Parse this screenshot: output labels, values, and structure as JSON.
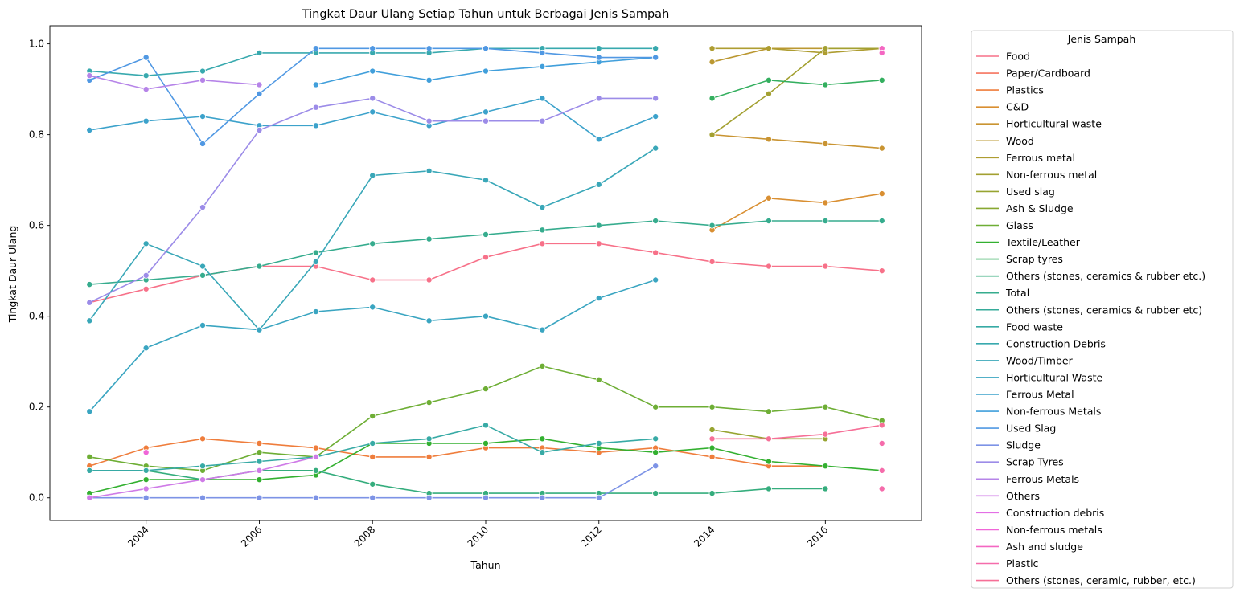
{
  "chart_data": {
    "type": "line",
    "title": "Tingkat Daur Ulang Setiap Tahun untuk Berbagai Jenis Sampah",
    "xlabel": "Tahun",
    "ylabel": "Tingkat Daur Ulang",
    "xlim": [
      2002.3,
      2017.7
    ],
    "ylim": [
      -0.05,
      1.04
    ],
    "xticks": [
      2004,
      2006,
      2008,
      2010,
      2012,
      2014,
      2016
    ],
    "yticks": [
      0.0,
      0.2,
      0.4,
      0.6,
      0.8,
      1.0
    ],
    "legend_title": "Jenis Sampah",
    "legend_position": "outside right",
    "grid": false,
    "series": [
      {
        "name": "Food",
        "color": "#f77189",
        "points": [
          [
            2003,
            0.43
          ],
          [
            2004,
            0.46
          ],
          [
            2005,
            0.49
          ],
          [
            2006,
            0.51
          ],
          [
            2007,
            0.51
          ],
          [
            2008,
            0.48
          ],
          [
            2009,
            0.48
          ],
          [
            2010,
            0.53
          ],
          [
            2011,
            0.56
          ],
          [
            2012,
            0.56
          ],
          [
            2013,
            0.54
          ],
          [
            2014,
            0.52
          ],
          [
            2015,
            0.51
          ],
          [
            2016,
            0.51
          ],
          [
            2017,
            0.5
          ]
        ]
      },
      {
        "name": "Paper/Cardboard",
        "color": "#f6745f",
        "points": []
      },
      {
        "name": "Plastics",
        "color": "#ef7d3c",
        "points": [
          [
            2003,
            0.07
          ],
          [
            2004,
            0.11
          ],
          [
            2005,
            0.13
          ],
          [
            2006,
            0.12
          ],
          [
            2007,
            0.11
          ],
          [
            2008,
            0.09
          ],
          [
            2009,
            0.09
          ],
          [
            2010,
            0.11
          ],
          [
            2011,
            0.11
          ],
          [
            2012,
            0.1
          ],
          [
            2013,
            0.11
          ],
          [
            2014,
            0.09
          ],
          [
            2015,
            0.07
          ],
          [
            2016,
            0.07
          ]
        ]
      },
      {
        "name": "C&D",
        "color": "#d98f32",
        "points": [
          [
            2014,
            0.59
          ],
          [
            2015,
            0.66
          ],
          [
            2016,
            0.65
          ],
          [
            2017,
            0.67
          ]
        ]
      },
      {
        "name": "Horticultural waste",
        "color": "#c99432",
        "points": [
          [
            2014,
            0.8
          ],
          [
            2015,
            0.79
          ],
          [
            2016,
            0.78
          ],
          [
            2017,
            0.77
          ]
        ]
      },
      {
        "name": "Wood",
        "color": "#bb9832",
        "points": [
          [
            2014,
            0.96
          ],
          [
            2015,
            0.99
          ],
          [
            2016,
            0.99
          ],
          [
            2017,
            0.99
          ]
        ]
      },
      {
        "name": "Ferrous metal",
        "color": "#ae9d31",
        "points": [
          [
            2014,
            0.99
          ],
          [
            2015,
            0.99
          ],
          [
            2016,
            0.98
          ],
          [
            2017,
            0.99
          ]
        ]
      },
      {
        "name": "Non-ferrous metal",
        "color": "#a3a031",
        "points": [
          [
            2014,
            0.8
          ],
          [
            2015,
            0.89
          ],
          [
            2016,
            0.99
          ],
          [
            2017,
            0.99
          ]
        ]
      },
      {
        "name": "Used slag",
        "color": "#97a431",
        "points": [
          [
            2014,
            0.15
          ],
          [
            2015,
            0.13
          ],
          [
            2016,
            0.13
          ]
        ]
      },
      {
        "name": "Ash & Sludge",
        "color": "#88a831",
        "points": []
      },
      {
        "name": "Glass",
        "color": "#6eae35",
        "points": [
          [
            2003,
            0.09
          ],
          [
            2004,
            0.07
          ],
          [
            2005,
            0.06
          ],
          [
            2006,
            0.1
          ],
          [
            2007,
            0.09
          ],
          [
            2008,
            0.18
          ],
          [
            2009,
            0.21
          ],
          [
            2010,
            0.24
          ],
          [
            2011,
            0.29
          ],
          [
            2012,
            0.26
          ],
          [
            2013,
            0.2
          ],
          [
            2014,
            0.2
          ],
          [
            2015,
            0.19
          ],
          [
            2016,
            0.2
          ],
          [
            2017,
            0.17
          ]
        ]
      },
      {
        "name": "Textile/Leather",
        "color": "#33b030",
        "points": [
          [
            2003,
            0.01
          ],
          [
            2004,
            0.04
          ],
          [
            2005,
            0.04
          ],
          [
            2006,
            0.04
          ],
          [
            2007,
            0.05
          ],
          [
            2008,
            0.12
          ],
          [
            2009,
            0.12
          ],
          [
            2010,
            0.12
          ],
          [
            2011,
            0.13
          ],
          [
            2012,
            0.11
          ],
          [
            2013,
            0.1
          ],
          [
            2014,
            0.11
          ],
          [
            2015,
            0.08
          ],
          [
            2016,
            0.07
          ],
          [
            2017,
            0.06
          ]
        ]
      },
      {
        "name": "Scrap tyres",
        "color": "#34af5f",
        "points": [
          [
            2014,
            0.88
          ],
          [
            2015,
            0.92
          ],
          [
            2016,
            0.91
          ],
          [
            2017,
            0.92
          ]
        ]
      },
      {
        "name": "Others (stones, ceramics & rubber etc.)",
        "color": "#35ad7d",
        "points": [
          [
            2003,
            0.06
          ],
          [
            2004,
            0.06
          ],
          [
            2005,
            0.04
          ],
          [
            2006,
            0.06
          ],
          [
            2007,
            0.06
          ],
          [
            2008,
            0.03
          ],
          [
            2009,
            0.01
          ],
          [
            2010,
            0.01
          ],
          [
            2011,
            0.01
          ],
          [
            2012,
            0.01
          ],
          [
            2013,
            0.01
          ],
          [
            2014,
            0.01
          ],
          [
            2015,
            0.02
          ],
          [
            2016,
            0.02
          ]
        ]
      },
      {
        "name": "Total",
        "color": "#36ac8e",
        "points": [
          [
            2003,
            0.47
          ],
          [
            2004,
            0.48
          ],
          [
            2005,
            0.49
          ],
          [
            2006,
            0.51
          ],
          [
            2007,
            0.54
          ],
          [
            2008,
            0.56
          ],
          [
            2009,
            0.57
          ],
          [
            2010,
            0.58
          ],
          [
            2011,
            0.59
          ],
          [
            2012,
            0.6
          ],
          [
            2013,
            0.61
          ],
          [
            2014,
            0.6
          ],
          [
            2015,
            0.61
          ],
          [
            2016,
            0.61
          ],
          [
            2017,
            0.61
          ]
        ]
      },
      {
        "name": "Others (stones, ceramics & rubber etc)",
        "color": "#36ab9a",
        "points": []
      },
      {
        "name": "Food waste",
        "color": "#37aaa5",
        "points": [
          [
            2003,
            0.06
          ],
          [
            2004,
            0.06
          ],
          [
            2005,
            0.07
          ],
          [
            2006,
            0.08
          ],
          [
            2007,
            0.09
          ],
          [
            2008,
            0.12
          ],
          [
            2009,
            0.13
          ],
          [
            2010,
            0.16
          ],
          [
            2011,
            0.1
          ],
          [
            2012,
            0.12
          ],
          [
            2013,
            0.13
          ]
        ]
      },
      {
        "name": "Construction Debris",
        "color": "#38a9ae",
        "points": [
          [
            2003,
            0.94
          ],
          [
            2004,
            0.93
          ],
          [
            2005,
            0.94
          ],
          [
            2006,
            0.98
          ],
          [
            2007,
            0.98
          ],
          [
            2008,
            0.98
          ],
          [
            2009,
            0.98
          ],
          [
            2010,
            0.99
          ],
          [
            2011,
            0.99
          ],
          [
            2012,
            0.99
          ],
          [
            2013,
            0.99
          ]
        ]
      },
      {
        "name": "Wood/Timber",
        "color": "#39a7b8",
        "points": [
          [
            2003,
            0.39
          ],
          [
            2004,
            0.56
          ],
          [
            2005,
            0.51
          ],
          [
            2006,
            0.37
          ],
          [
            2007,
            0.52
          ],
          [
            2008,
            0.71
          ],
          [
            2009,
            0.72
          ],
          [
            2010,
            0.7
          ],
          [
            2011,
            0.64
          ],
          [
            2012,
            0.69
          ],
          [
            2013,
            0.77
          ]
        ]
      },
      {
        "name": "Horticultural Waste",
        "color": "#3aa5c1",
        "points": [
          [
            2003,
            0.19
          ],
          [
            2004,
            0.33
          ],
          [
            2005,
            0.38
          ],
          [
            2006,
            0.37
          ],
          [
            2007,
            0.41
          ],
          [
            2008,
            0.42
          ],
          [
            2009,
            0.39
          ],
          [
            2010,
            0.4
          ],
          [
            2011,
            0.37
          ],
          [
            2012,
            0.44
          ],
          [
            2013,
            0.48
          ]
        ]
      },
      {
        "name": "Ferrous Metal",
        "color": "#3ca2cb",
        "points": [
          [
            2003,
            0.81
          ],
          [
            2004,
            0.83
          ],
          [
            2005,
            0.84
          ],
          [
            2006,
            0.82
          ],
          [
            2007,
            0.82
          ],
          [
            2008,
            0.85
          ],
          [
            2009,
            0.82
          ],
          [
            2010,
            0.85
          ],
          [
            2011,
            0.88
          ],
          [
            2012,
            0.79
          ],
          [
            2013,
            0.84
          ]
        ]
      },
      {
        "name": "Non-ferrous Metals",
        "color": "#419fdb",
        "points": [
          [
            2007,
            0.91
          ],
          [
            2008,
            0.94
          ],
          [
            2009,
            0.92
          ],
          [
            2010,
            0.94
          ],
          [
            2011,
            0.95
          ],
          [
            2012,
            0.96
          ],
          [
            2013,
            0.97
          ]
        ]
      },
      {
        "name": "Used Slag",
        "color": "#5098e3",
        "points": [
          [
            2003,
            0.92
          ],
          [
            2004,
            0.97
          ],
          [
            2005,
            0.78
          ],
          [
            2006,
            0.89
          ],
          [
            2007,
            0.99
          ],
          [
            2008,
            0.99
          ],
          [
            2009,
            0.99
          ],
          [
            2010,
            0.99
          ],
          [
            2011,
            0.98
          ],
          [
            2012,
            0.97
          ],
          [
            2013,
            0.97
          ]
        ]
      },
      {
        "name": "Sludge",
        "color": "#7d93e6",
        "points": [
          [
            2003,
            0.0
          ],
          [
            2004,
            0.0
          ],
          [
            2005,
            0.0
          ],
          [
            2006,
            0.0
          ],
          [
            2007,
            0.0
          ],
          [
            2008,
            0.0
          ],
          [
            2009,
            0.0
          ],
          [
            2010,
            0.0
          ],
          [
            2011,
            0.0
          ],
          [
            2012,
            0.0
          ],
          [
            2013,
            0.07
          ]
        ]
      },
      {
        "name": "Scrap Tyres",
        "color": "#9c8ce8",
        "points": [
          [
            2003,
            0.43
          ],
          [
            2004,
            0.49
          ],
          [
            2005,
            0.64
          ],
          [
            2006,
            0.81
          ],
          [
            2007,
            0.86
          ],
          [
            2008,
            0.88
          ],
          [
            2009,
            0.83
          ],
          [
            2010,
            0.83
          ],
          [
            2011,
            0.83
          ],
          [
            2012,
            0.88
          ],
          [
            2013,
            0.88
          ]
        ]
      },
      {
        "name": "Ferrous Metals",
        "color": "#b684e8",
        "points": [
          [
            2003,
            0.93
          ],
          [
            2004,
            0.9
          ],
          [
            2005,
            0.92
          ],
          [
            2006,
            0.91
          ]
        ]
      },
      {
        "name": "Others",
        "color": "#cf7be7",
        "points": [
          [
            2003,
            0.0
          ],
          [
            2004,
            0.02
          ],
          [
            2005,
            0.04
          ],
          [
            2006,
            0.06
          ],
          [
            2007,
            0.09
          ]
        ]
      },
      {
        "name": "Construction debris",
        "color": "#e36fe5",
        "points": []
      },
      {
        "name": "Non-ferrous metals",
        "color": "#f066d8",
        "points": [
          [
            2004,
            0.1
          ]
        ]
      },
      {
        "name": "Ash and sludge",
        "color": "#f467c2",
        "points": [
          [
            2017,
            0.99
          ],
          [
            2017,
            0.98
          ]
        ]
      },
      {
        "name": "Plastic",
        "color": "#f56cab",
        "points": [
          [
            2017,
            0.12
          ],
          [
            2017,
            0.06
          ],
          [
            2017,
            0.02
          ]
        ]
      },
      {
        "name": "Others (stones, ceramic, rubber, etc.)",
        "color": "#f66f97",
        "points": [
          [
            2014,
            0.13
          ],
          [
            2015,
            0.13
          ],
          [
            2016,
            0.14
          ],
          [
            2017,
            0.16
          ]
        ]
      }
    ]
  }
}
